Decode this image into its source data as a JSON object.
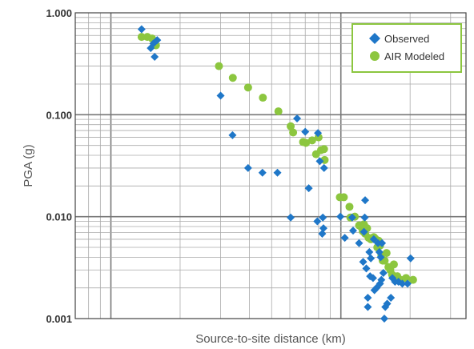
{
  "chart_data": {
    "type": "scatter",
    "xlabel": "Source-to-site distance (km)",
    "ylabel": "PGA (g)",
    "x_scale": "log",
    "y_scale": "log",
    "xlim": [
      0.7,
      35
    ],
    "ylim": [
      0.001,
      1.0
    ],
    "x_tick_labels": [],
    "y_ticks": [
      {
        "value": 1.0,
        "label": "1.000"
      },
      {
        "value": 0.1,
        "label": "0.100"
      },
      {
        "value": 0.01,
        "label": "0.010"
      },
      {
        "value": 0.001,
        "label": "0.001"
      }
    ],
    "grid": true,
    "legend": "top-right",
    "series": [
      {
        "name": "Observed",
        "marker": "diamond",
        "color": "#1f77c8",
        "points": [
          [
            1.36,
            0.69
          ],
          [
            1.49,
            0.45
          ],
          [
            1.53,
            0.5
          ],
          [
            1.59,
            0.54
          ],
          [
            1.55,
            0.37
          ],
          [
            3.0,
            0.154
          ],
          [
            3.38,
            0.063
          ],
          [
            3.95,
            0.03
          ],
          [
            4.56,
            0.027
          ],
          [
            5.3,
            0.027
          ],
          [
            6.05,
            0.0098
          ],
          [
            6.45,
            0.092
          ],
          [
            7.0,
            0.068
          ],
          [
            7.25,
            0.019
          ],
          [
            7.95,
            0.066
          ],
          [
            8.1,
            0.035
          ],
          [
            8.45,
            0.03
          ],
          [
            7.9,
            0.009
          ],
          [
            8.35,
            0.0098
          ],
          [
            8.4,
            0.0077
          ],
          [
            8.3,
            0.0068
          ],
          [
            9.95,
            0.01
          ],
          [
            10.4,
            0.0062
          ],
          [
            11.2,
            0.0098
          ],
          [
            11.3,
            0.0073
          ],
          [
            12.0,
            0.0055
          ],
          [
            12.5,
            0.0036
          ],
          [
            12.6,
            0.0071
          ],
          [
            12.7,
            0.0098
          ],
          [
            12.75,
            0.0145
          ],
          [
            12.9,
            0.0031
          ],
          [
            13.1,
            0.0016
          ],
          [
            13.1,
            0.0013
          ],
          [
            13.3,
            0.0045
          ],
          [
            13.4,
            0.0026
          ],
          [
            13.5,
            0.0039
          ],
          [
            13.8,
            0.0025
          ],
          [
            13.9,
            0.006
          ],
          [
            14.0,
            0.0019
          ],
          [
            14.3,
            0.002
          ],
          [
            14.5,
            0.0055
          ],
          [
            14.7,
            0.0045
          ],
          [
            14.8,
            0.0022
          ],
          [
            14.9,
            0.004
          ],
          [
            15.0,
            0.0024
          ],
          [
            15.1,
            0.0055
          ],
          [
            15.3,
            0.0028
          ],
          [
            15.45,
            0.001
          ],
          [
            15.6,
            0.0013
          ],
          [
            15.9,
            0.0014
          ],
          [
            16.5,
            0.0016
          ],
          [
            16.75,
            0.0025
          ],
          [
            17.2,
            0.0023
          ],
          [
            17.8,
            0.0023
          ],
          [
            18.5,
            0.0022
          ],
          [
            19.5,
            0.0022
          ],
          [
            20.1,
            0.0039
          ]
        ]
      },
      {
        "name": "AIR Modeled",
        "marker": "circle",
        "color": "#8cc63f",
        "points": [
          [
            1.36,
            0.58
          ],
          [
            1.44,
            0.58
          ],
          [
            1.51,
            0.56
          ],
          [
            1.57,
            0.48
          ],
          [
            2.95,
            0.3
          ],
          [
            3.39,
            0.23
          ],
          [
            3.95,
            0.185
          ],
          [
            4.58,
            0.147
          ],
          [
            5.35,
            0.108
          ],
          [
            6.05,
            0.077
          ],
          [
            6.2,
            0.067
          ],
          [
            6.85,
            0.054
          ],
          [
            7.05,
            0.053
          ],
          [
            7.5,
            0.056
          ],
          [
            7.8,
            0.041
          ],
          [
            8.0,
            0.06
          ],
          [
            8.2,
            0.045
          ],
          [
            8.45,
            0.046
          ],
          [
            8.5,
            0.036
          ],
          [
            9.9,
            0.0155
          ],
          [
            10.3,
            0.0155
          ],
          [
            10.9,
            0.0125
          ],
          [
            11.0,
            0.0098
          ],
          [
            11.5,
            0.01
          ],
          [
            12.0,
            0.0082
          ],
          [
            12.2,
            0.008
          ],
          [
            12.45,
            0.0072
          ],
          [
            12.6,
            0.0084
          ],
          [
            12.75,
            0.0068
          ],
          [
            13.0,
            0.0077
          ],
          [
            13.2,
            0.0062
          ],
          [
            13.5,
            0.006
          ],
          [
            13.9,
            0.0063
          ],
          [
            14.1,
            0.0061
          ],
          [
            14.4,
            0.005
          ],
          [
            14.6,
            0.0058
          ],
          [
            14.8,
            0.0052
          ],
          [
            15.0,
            0.0042
          ],
          [
            15.2,
            0.0037
          ],
          [
            15.5,
            0.0037
          ],
          [
            15.8,
            0.0044
          ],
          [
            16.1,
            0.0032
          ],
          [
            16.4,
            0.003
          ],
          [
            16.7,
            0.0027
          ],
          [
            17.0,
            0.0034
          ],
          [
            17.3,
            0.0025
          ],
          [
            17.6,
            0.0026
          ],
          [
            18.2,
            0.0024
          ],
          [
            19.2,
            0.0025
          ],
          [
            20.6,
            0.0024
          ]
        ]
      }
    ]
  }
}
